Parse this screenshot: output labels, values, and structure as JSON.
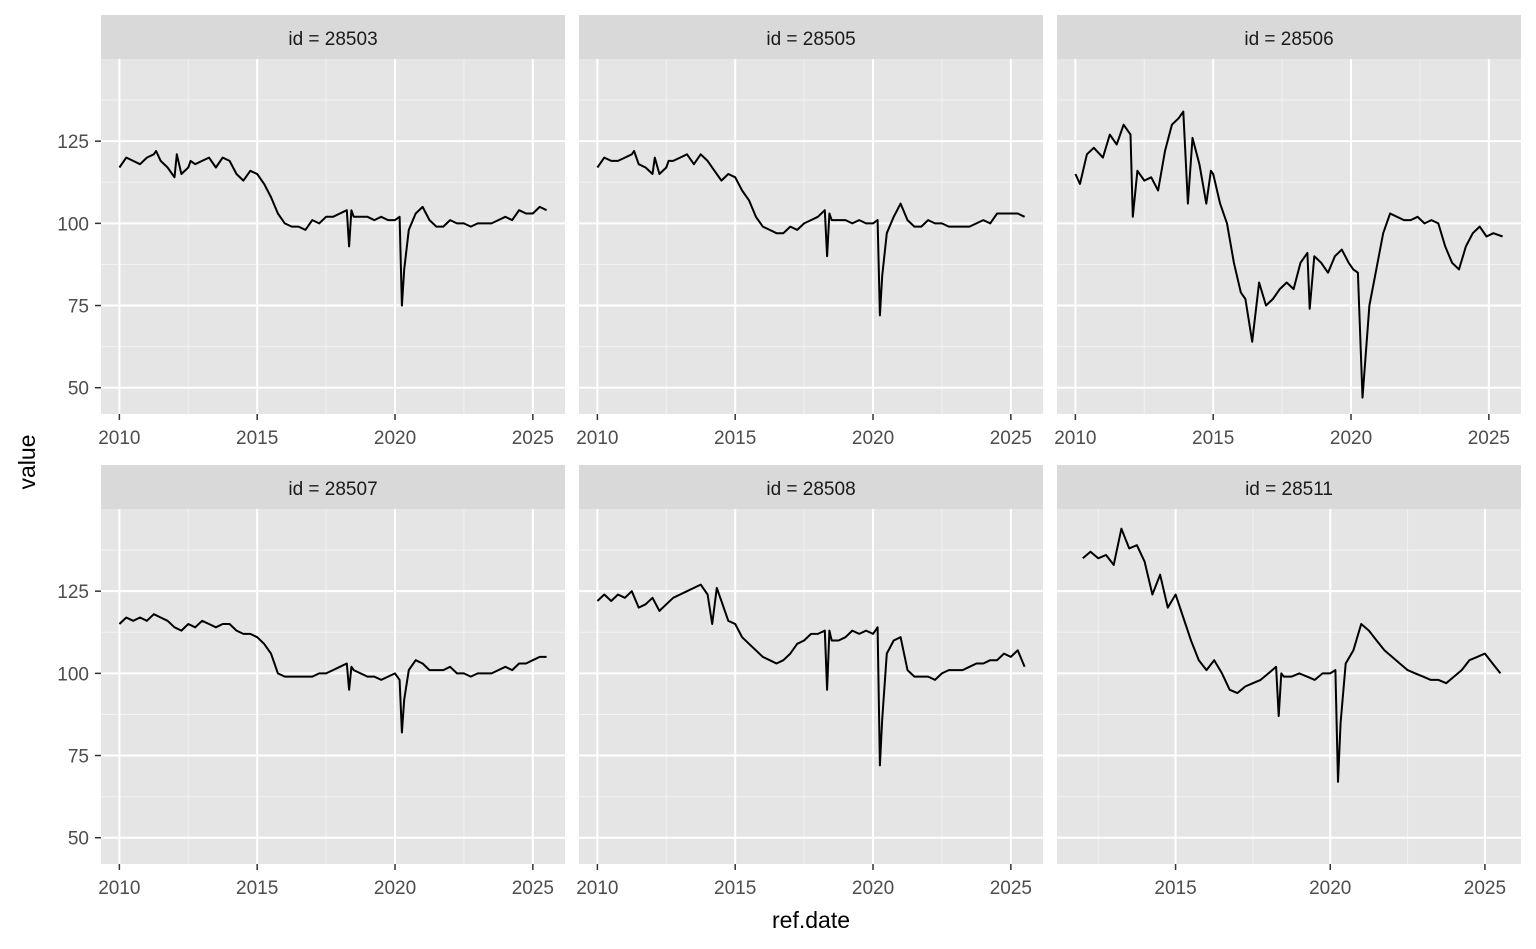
{
  "chart_data": {
    "type": "line",
    "layout": "facet grid, 2 rows x 3 columns, shared y-axis",
    "xlabel": "ref.date",
    "ylabel": "value",
    "ylim": [
      42,
      150
    ],
    "y_ticks": [
      50,
      75,
      100,
      125
    ],
    "background": "#e5e5e5",
    "strip_background": "#d9d9d9",
    "line_color": "#000000",
    "grid": true,
    "panels": [
      {
        "strip": "id = 28503",
        "xlim": [
          "2009-05",
          "2026-03"
        ],
        "x_ticks": [
          "2010",
          "2015",
          "2020",
          "2025"
        ],
        "x": [
          "2010-01",
          "2010-04",
          "2010-07",
          "2010-10",
          "2011-01",
          "2011-04",
          "2011-05",
          "2011-07",
          "2011-10",
          "2012-01",
          "2012-02",
          "2012-04",
          "2012-07",
          "2012-08",
          "2012-10",
          "2013-01",
          "2013-04",
          "2013-07",
          "2013-10",
          "2014-01",
          "2014-04",
          "2014-07",
          "2014-10",
          "2015-01",
          "2015-04",
          "2015-07",
          "2015-10",
          "2016-01",
          "2016-04",
          "2016-07",
          "2016-10",
          "2017-01",
          "2017-04",
          "2017-07",
          "2017-10",
          "2018-01",
          "2018-04",
          "2018-05",
          "2018-06",
          "2018-07",
          "2018-10",
          "2019-01",
          "2019-04",
          "2019-07",
          "2019-10",
          "2020-01",
          "2020-03",
          "2020-04",
          "2020-05",
          "2020-07",
          "2020-10",
          "2021-01",
          "2021-04",
          "2021-07",
          "2021-10",
          "2022-01",
          "2022-04",
          "2022-07",
          "2022-10",
          "2023-01",
          "2023-04",
          "2023-07",
          "2023-10",
          "2024-01",
          "2024-04",
          "2024-07",
          "2024-10",
          "2025-01",
          "2025-04",
          "2025-07"
        ],
        "y": [
          117,
          120,
          119,
          118,
          120,
          121,
          122,
          119,
          117,
          114,
          121,
          115,
          117,
          119,
          118,
          119,
          120,
          117,
          120,
          119,
          115,
          113,
          116,
          115,
          112,
          108,
          103,
          100,
          99,
          99,
          98,
          101,
          100,
          102,
          102,
          103,
          104,
          93,
          104,
          102,
          102,
          102,
          101,
          102,
          101,
          101,
          102,
          75,
          86,
          98,
          103,
          105,
          101,
          99,
          99,
          101,
          100,
          100,
          99,
          100,
          100,
          100,
          101,
          102,
          101,
          104,
          103,
          103,
          105,
          104
        ]
      },
      {
        "strip": "id = 28505",
        "xlim": [
          "2009-05",
          "2026-03"
        ],
        "x_ticks": [
          "2010",
          "2015",
          "2020",
          "2025"
        ],
        "x": [
          "2010-01",
          "2010-04",
          "2010-07",
          "2010-10",
          "2011-01",
          "2011-04",
          "2011-05",
          "2011-07",
          "2011-10",
          "2012-01",
          "2012-02",
          "2012-04",
          "2012-07",
          "2012-08",
          "2012-10",
          "2013-01",
          "2013-04",
          "2013-07",
          "2013-10",
          "2014-01",
          "2014-04",
          "2014-07",
          "2014-10",
          "2015-01",
          "2015-04",
          "2015-07",
          "2015-10",
          "2016-01",
          "2016-04",
          "2016-07",
          "2016-10",
          "2017-01",
          "2017-04",
          "2017-07",
          "2017-10",
          "2018-01",
          "2018-04",
          "2018-05",
          "2018-06",
          "2018-07",
          "2018-10",
          "2019-01",
          "2019-04",
          "2019-07",
          "2019-10",
          "2020-01",
          "2020-03",
          "2020-04",
          "2020-05",
          "2020-07",
          "2020-10",
          "2021-01",
          "2021-04",
          "2021-07",
          "2021-10",
          "2022-01",
          "2022-04",
          "2022-07",
          "2022-10",
          "2023-01",
          "2023-04",
          "2023-07",
          "2023-10",
          "2024-01",
          "2024-04",
          "2024-07",
          "2024-10",
          "2025-01",
          "2025-04",
          "2025-07"
        ],
        "y": [
          117,
          120,
          119,
          119,
          120,
          121,
          122,
          118,
          117,
          115,
          120,
          115,
          117,
          119,
          119,
          120,
          121,
          118,
          121,
          119,
          116,
          113,
          115,
          114,
          110,
          107,
          102,
          99,
          98,
          97,
          97,
          99,
          98,
          100,
          101,
          102,
          104,
          90,
          103,
          101,
          101,
          101,
          100,
          101,
          100,
          100,
          101,
          72,
          84,
          97,
          102,
          106,
          101,
          99,
          99,
          101,
          100,
          100,
          99,
          99,
          99,
          99,
          100,
          101,
          100,
          103,
          103,
          103,
          103,
          102
        ]
      },
      {
        "strip": "id = 28506",
        "xlim": [
          "2009-05",
          "2026-03"
        ],
        "x_ticks": [
          "2010",
          "2015",
          "2020",
          "2025"
        ],
        "x": [
          "2010-01",
          "2010-03",
          "2010-06",
          "2010-09",
          "2011-01",
          "2011-04",
          "2011-07",
          "2011-10",
          "2012-01",
          "2012-02",
          "2012-04",
          "2012-07",
          "2012-10",
          "2013-01",
          "2013-04",
          "2013-07",
          "2013-10",
          "2013-12",
          "2014-02",
          "2014-04",
          "2014-07",
          "2014-10",
          "2014-12",
          "2015-01",
          "2015-04",
          "2015-07",
          "2015-10",
          "2016-01",
          "2016-03",
          "2016-06",
          "2016-09",
          "2016-12",
          "2017-03",
          "2017-06",
          "2017-09",
          "2017-12",
          "2018-03",
          "2018-06",
          "2018-07",
          "2018-09",
          "2018-12",
          "2019-03",
          "2019-06",
          "2019-09",
          "2019-12",
          "2020-02",
          "2020-04",
          "2020-06",
          "2020-09",
          "2020-12",
          "2021-03",
          "2021-06",
          "2021-09",
          "2021-12",
          "2022-03",
          "2022-06",
          "2022-09",
          "2022-12",
          "2023-03",
          "2023-06",
          "2023-09",
          "2023-12",
          "2024-03",
          "2024-06",
          "2024-09",
          "2024-12",
          "2025-03",
          "2025-07"
        ],
        "y": [
          115,
          112,
          121,
          123,
          120,
          127,
          124,
          130,
          127,
          102,
          116,
          113,
          114,
          110,
          122,
          130,
          132,
          134,
          106,
          126,
          118,
          106,
          116,
          115,
          106,
          100,
          88,
          79,
          77,
          64,
          82,
          75,
          77,
          80,
          82,
          80,
          88,
          91,
          74,
          90,
          88,
          85,
          90,
          92,
          88,
          86,
          85,
          47,
          75,
          86,
          97,
          103,
          102,
          101,
          101,
          102,
          100,
          101,
          100,
          93,
          88,
          86,
          93,
          97,
          99,
          96,
          97,
          96
        ]
      },
      {
        "strip": "id = 28507",
        "xlim": [
          "2009-05",
          "2026-03"
        ],
        "x_ticks": [
          "2010",
          "2015",
          "2020",
          "2025"
        ],
        "x": [
          "2010-01",
          "2010-04",
          "2010-07",
          "2010-10",
          "2011-01",
          "2011-04",
          "2011-07",
          "2011-10",
          "2012-01",
          "2012-04",
          "2012-07",
          "2012-10",
          "2013-01",
          "2013-04",
          "2013-07",
          "2013-10",
          "2014-01",
          "2014-04",
          "2014-07",
          "2014-10",
          "2015-01",
          "2015-04",
          "2015-07",
          "2015-10",
          "2016-01",
          "2016-04",
          "2016-07",
          "2016-10",
          "2017-01",
          "2017-04",
          "2017-07",
          "2017-10",
          "2018-01",
          "2018-04",
          "2018-05",
          "2018-06",
          "2018-07",
          "2018-10",
          "2019-01",
          "2019-04",
          "2019-07",
          "2019-10",
          "2020-01",
          "2020-03",
          "2020-04",
          "2020-05",
          "2020-07",
          "2020-10",
          "2021-01",
          "2021-04",
          "2021-07",
          "2021-10",
          "2022-01",
          "2022-04",
          "2022-07",
          "2022-10",
          "2023-01",
          "2023-04",
          "2023-07",
          "2023-10",
          "2024-01",
          "2024-04",
          "2024-07",
          "2024-10",
          "2025-01",
          "2025-04",
          "2025-07"
        ],
        "y": [
          115,
          117,
          116,
          117,
          116,
          118,
          117,
          116,
          114,
          113,
          115,
          114,
          116,
          115,
          114,
          115,
          115,
          113,
          112,
          112,
          111,
          109,
          106,
          100,
          99,
          99,
          99,
          99,
          99,
          100,
          100,
          101,
          102,
          103,
          95,
          102,
          101,
          100,
          99,
          99,
          98,
          99,
          100,
          98,
          82,
          92,
          101,
          104,
          103,
          101,
          101,
          101,
          102,
          100,
          100,
          99,
          100,
          100,
          100,
          101,
          102,
          101,
          103,
          103,
          104,
          105,
          105
        ]
      },
      {
        "strip": "id = 28508",
        "xlim": [
          "2009-05",
          "2026-03"
        ],
        "x_ticks": [
          "2010",
          "2015",
          "2020",
          "2025"
        ],
        "x": [
          "2010-01",
          "2010-04",
          "2010-07",
          "2010-10",
          "2011-01",
          "2011-04",
          "2011-07",
          "2011-10",
          "2012-01",
          "2012-04",
          "2012-07",
          "2012-10",
          "2013-01",
          "2013-04",
          "2013-07",
          "2013-10",
          "2014-01",
          "2014-03",
          "2014-05",
          "2014-07",
          "2014-10",
          "2015-01",
          "2015-04",
          "2015-07",
          "2015-10",
          "2016-01",
          "2016-04",
          "2016-07",
          "2016-10",
          "2017-01",
          "2017-04",
          "2017-07",
          "2017-10",
          "2018-01",
          "2018-04",
          "2018-05",
          "2018-06",
          "2018-07",
          "2018-10",
          "2019-01",
          "2019-04",
          "2019-07",
          "2019-10",
          "2020-01",
          "2020-03",
          "2020-04",
          "2020-05",
          "2020-07",
          "2020-10",
          "2021-01",
          "2021-04",
          "2021-07",
          "2021-10",
          "2022-01",
          "2022-04",
          "2022-07",
          "2022-10",
          "2023-01",
          "2023-04",
          "2023-07",
          "2023-10",
          "2024-01",
          "2024-04",
          "2024-07",
          "2024-10",
          "2025-01",
          "2025-04",
          "2025-07"
        ],
        "y": [
          122,
          124,
          122,
          124,
          123,
          125,
          120,
          121,
          123,
          119,
          121,
          123,
          124,
          125,
          126,
          127,
          124,
          115,
          126,
          122,
          116,
          115,
          111,
          109,
          107,
          105,
          104,
          103,
          104,
          106,
          109,
          110,
          112,
          112,
          113,
          95,
          113,
          110,
          110,
          111,
          113,
          112,
          113,
          112,
          114,
          72,
          86,
          106,
          110,
          111,
          101,
          99,
          99,
          99,
          98,
          100,
          101,
          101,
          101,
          102,
          103,
          103,
          104,
          104,
          106,
          105,
          107,
          102
        ]
      },
      {
        "strip": "id = 28511",
        "xlim": [
          "2011-03",
          "2026-03"
        ],
        "x_ticks": [
          "2015",
          "2020",
          "2025"
        ],
        "x": [
          "2012-01",
          "2012-04",
          "2012-07",
          "2012-10",
          "2013-01",
          "2013-04",
          "2013-07",
          "2013-10",
          "2014-01",
          "2014-04",
          "2014-07",
          "2014-10",
          "2015-01",
          "2015-04",
          "2015-07",
          "2015-10",
          "2016-01",
          "2016-04",
          "2016-07",
          "2016-10",
          "2017-01",
          "2017-04",
          "2017-07",
          "2017-10",
          "2018-01",
          "2018-04",
          "2018-05",
          "2018-06",
          "2018-07",
          "2018-10",
          "2019-01",
          "2019-04",
          "2019-07",
          "2019-10",
          "2020-01",
          "2020-03",
          "2020-04",
          "2020-05",
          "2020-07",
          "2020-10",
          "2021-01",
          "2021-04",
          "2021-07",
          "2021-10",
          "2022-01",
          "2022-04",
          "2022-07",
          "2022-10",
          "2023-01",
          "2023-04",
          "2023-07",
          "2023-10",
          "2024-01",
          "2024-04",
          "2024-07",
          "2024-10",
          "2025-01",
          "2025-04",
          "2025-07"
        ],
        "y": [
          135,
          137,
          135,
          136,
          133,
          144,
          138,
          139,
          134,
          124,
          130,
          120,
          124,
          117,
          110,
          104,
          101,
          104,
          100,
          95,
          94,
          96,
          97,
          98,
          100,
          102,
          87,
          100,
          99,
          99,
          100,
          99,
          98,
          100,
          100,
          101,
          67,
          85,
          103,
          107,
          115,
          113,
          110,
          107,
          105,
          103,
          101,
          100,
          99,
          98,
          98,
          97,
          99,
          101,
          104,
          105,
          106,
          103,
          100
        ]
      }
    ]
  }
}
